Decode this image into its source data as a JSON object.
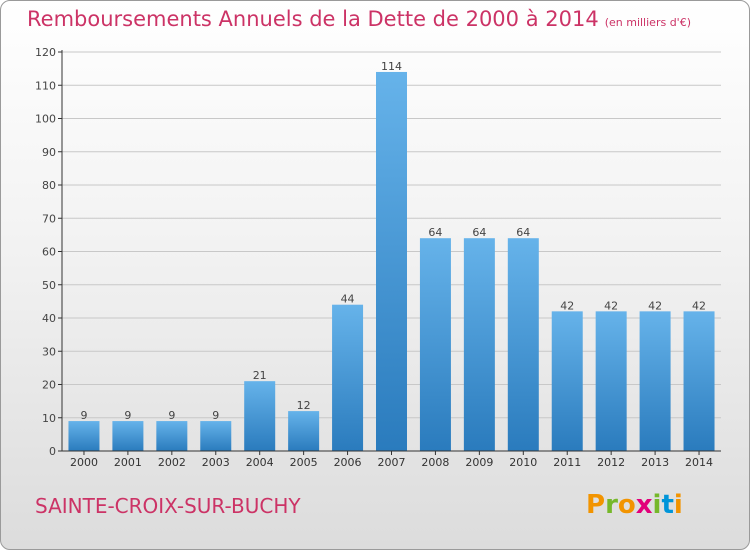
{
  "header": {
    "title": "Remboursements Annuels de la Dette de 2000 à 2014",
    "unit": "(en milliers d'€)"
  },
  "footer": {
    "commune": "SAINTE-CROIX-SUR-BUCHY",
    "logo_letters": [
      "P",
      "r",
      "o",
      "x",
      "i",
      "t",
      "i"
    ],
    "logo_colors": [
      "#f29400",
      "#76b82a",
      "#f29400",
      "#e2007a",
      "#76b82a",
      "#0095d9",
      "#f29400"
    ]
  },
  "colors": {
    "bar_light": "#66b3ea",
    "bar_dark": "#2a7bbd",
    "axis": "#333333",
    "grid": "#c8c8c8",
    "accent": "#cc3366"
  },
  "chart_data": {
    "type": "bar",
    "categories": [
      "2000",
      "2001",
      "2002",
      "2003",
      "2004",
      "2005",
      "2006",
      "2007",
      "2008",
      "2009",
      "2010",
      "2011",
      "2012",
      "2013",
      "2014"
    ],
    "values": [
      9,
      9,
      9,
      9,
      21,
      12,
      44,
      114,
      64,
      64,
      64,
      42,
      42,
      42,
      42
    ],
    "ylim": [
      0,
      120
    ],
    "yticks": [
      0,
      10,
      20,
      30,
      40,
      50,
      60,
      70,
      80,
      90,
      100,
      110,
      120
    ],
    "data_labels": true,
    "grid": true
  }
}
